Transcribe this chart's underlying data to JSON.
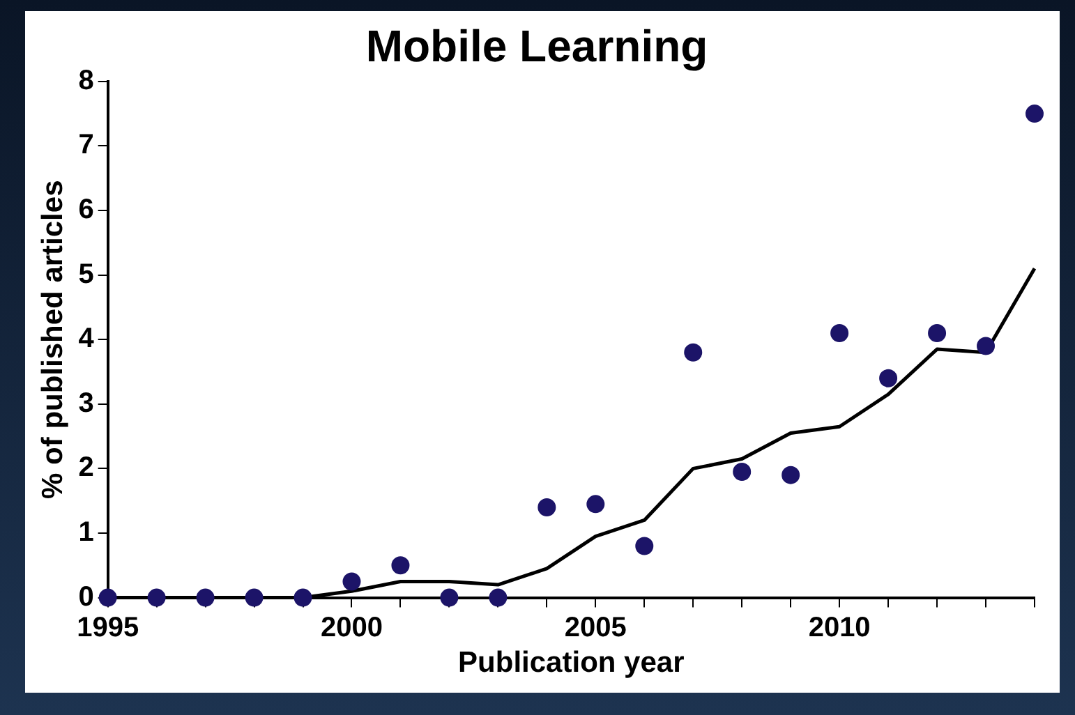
{
  "chart_data": {
    "type": "scatter",
    "title": "Mobile Learning",
    "xlabel": "Publication year",
    "ylabel": "% of published articles",
    "x": [
      1995,
      1996,
      1997,
      1998,
      1999,
      2000,
      2001,
      2002,
      2003,
      2004,
      2005,
      2006,
      2007,
      2008,
      2009,
      2010,
      2011,
      2012,
      2013,
      2014
    ],
    "series": [
      {
        "type": "scatter",
        "color": "#1c1468",
        "marker": "circle",
        "values": [
          0,
          0,
          0,
          0,
          0,
          0.25,
          0.5,
          0,
          0,
          1.4,
          1.45,
          0.8,
          3.8,
          1.95,
          1.9,
          4.1,
          3.4,
          4.1,
          3.9,
          7.5
        ]
      },
      {
        "type": "line",
        "color": "#000000",
        "marker": "none",
        "line_style": "solid",
        "values": [
          0,
          0,
          0,
          0,
          0,
          0.1,
          0.25,
          0.25,
          0.2,
          0.45,
          0.95,
          1.2,
          2,
          2.15,
          2.55,
          2.65,
          3.15,
          3.85,
          3.8,
          5.1
        ]
      }
    ],
    "xlim": [
      1995,
      2014
    ],
    "xticks": [
      1995,
      {
        "value": 1996,
        "label": null
      },
      {
        "value": 1997,
        "label": null
      },
      {
        "value": 1998,
        "label": null
      },
      {
        "value": 1999,
        "label": null
      },
      2000,
      {
        "value": 2001,
        "label": null
      },
      {
        "value": 2002,
        "label": null
      },
      {
        "value": 2003,
        "label": null
      },
      {
        "value": 2004,
        "label": null
      },
      2005,
      {
        "value": 2006,
        "label": null
      },
      {
        "value": 2007,
        "label": null
      },
      {
        "value": 2008,
        "label": null
      },
      {
        "value": 2009,
        "label": null
      },
      2010,
      {
        "value": 2011,
        "label": null
      },
      {
        "value": 2012,
        "label": null
      },
      {
        "value": 2013,
        "label": null
      },
      {
        "value": 2014,
        "label": null
      }
    ],
    "ylim": [
      0,
      8
    ],
    "yticks": [
      0,
      1,
      2,
      3,
      4,
      5,
      6,
      7,
      8
    ],
    "grid": false,
    "legend": false
  }
}
